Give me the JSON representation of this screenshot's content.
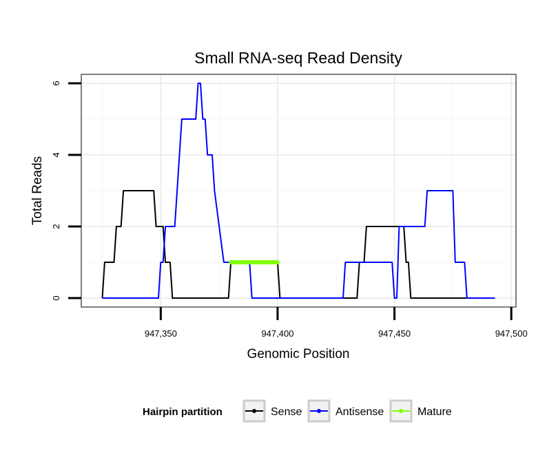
{
  "chart_data": {
    "type": "line",
    "title": "Small RNA-seq Read Density",
    "xlabel": "Genomic Position",
    "ylabel": "Total Reads",
    "xlim": [
      947316,
      947502
    ],
    "ylim": [
      -0.25,
      6.25
    ],
    "xticks": [
      947350,
      947400,
      947450,
      947500
    ],
    "xtick_labels": [
      "947,350",
      "947,400",
      "947,450",
      "947,500"
    ],
    "yticks": [
      0,
      2,
      4,
      6
    ],
    "ytick_labels": [
      "0",
      "2",
      "4",
      "6"
    ],
    "legend": {
      "title": "Hairpin partition",
      "position": "bottom",
      "entries": [
        "Sense",
        "Antisense",
        "Mature"
      ]
    },
    "series": [
      {
        "name": "Sense",
        "color": "#000000",
        "x": [
          947325,
          947326,
          947330,
          947331,
          947333,
          947334,
          947347,
          947348,
          947351,
          947352,
          947354,
          947355,
          947379,
          947380,
          947400,
          947401,
          947434,
          947435,
          947437,
          947438,
          947454,
          947455,
          947456,
          947457,
          947493
        ],
        "y": [
          0,
          1,
          1,
          2,
          2,
          3,
          3,
          2,
          2,
          1,
          1,
          0,
          0,
          1,
          1,
          0,
          0,
          1,
          1,
          2,
          2,
          1,
          1,
          0,
          0
        ]
      },
      {
        "name": "Antisense",
        "color": "#0000ff",
        "x": [
          947325,
          947349,
          947350,
          947351,
          947352,
          947356,
          947357,
          947359,
          947365,
          947366,
          947367,
          947368,
          947369,
          947370,
          947372,
          947373,
          947377,
          947380,
          947388,
          947389,
          947428,
          947429,
          947440,
          947441,
          947449,
          947450,
          947451,
          947452,
          947458,
          947459,
          947463,
          947464,
          947475,
          947476,
          947480,
          947481,
          947493
        ],
        "y": [
          0,
          0,
          1,
          1,
          2,
          2,
          3,
          5,
          5,
          6,
          6,
          5,
          5,
          4,
          4,
          3,
          1,
          1,
          1,
          0,
          0,
          1,
          1,
          1,
          1,
          0,
          0,
          2,
          2,
          2,
          2,
          3,
          3,
          1,
          1,
          0,
          0
        ]
      },
      {
        "name": "Mature",
        "color": "#7fff00",
        "x": [
          947380,
          947400
        ],
        "y": [
          1,
          1
        ]
      }
    ]
  }
}
